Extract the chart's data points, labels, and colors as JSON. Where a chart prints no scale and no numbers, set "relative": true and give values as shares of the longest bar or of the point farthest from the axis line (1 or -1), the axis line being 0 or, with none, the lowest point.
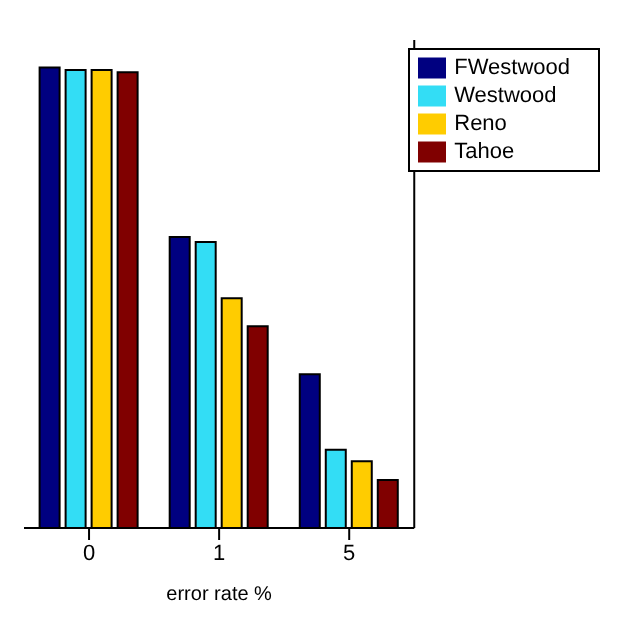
{
  "chart_data": {
    "type": "bar",
    "relative": true,
    "xlabel": "error rate %",
    "categories": [
      "0",
      "1",
      "5"
    ],
    "series": [
      {
        "name": "FWestwood",
        "color": "#000080",
        "values": [
          1,
          0.632,
          0.334
        ]
      },
      {
        "name": "Westwood",
        "color": "#33ddf5",
        "values": [
          0.995,
          0.621,
          0.17
        ]
      },
      {
        "name": "Reno",
        "color": "#ffcc00",
        "values": [
          0.995,
          0.499,
          0.145
        ]
      },
      {
        "name": "Tahoe",
        "color": "#800000",
        "values": [
          0.99,
          0.438,
          0.104
        ]
      }
    ],
    "legend": "top right",
    "grid": false
  }
}
